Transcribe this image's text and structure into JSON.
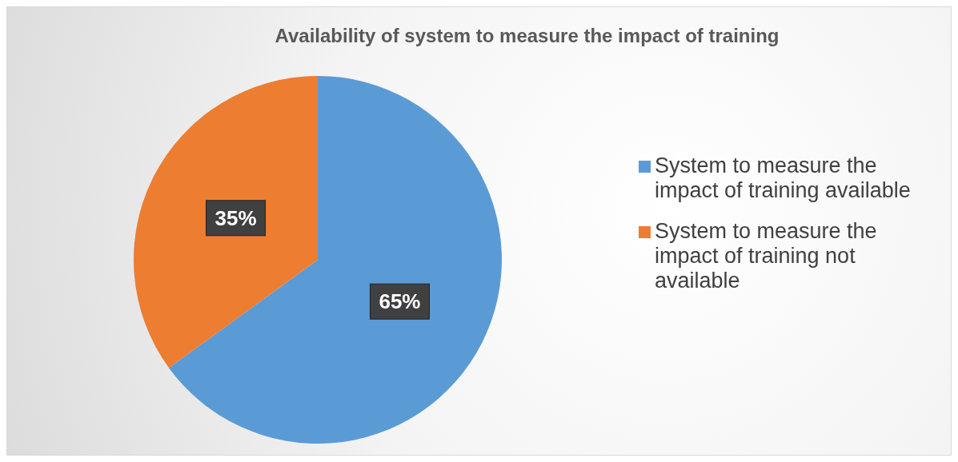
{
  "chart_data": {
    "type": "pie",
    "title": "Availability of system to measure the impact of training",
    "categories": [
      "System to measure the impact of training available",
      "System to measure the impact of training not available"
    ],
    "values": [
      65,
      35
    ],
    "colors": [
      "#5b9bd5",
      "#ed7d31"
    ],
    "value_labels": [
      "65%",
      "35%"
    ],
    "legend": "right"
  }
}
